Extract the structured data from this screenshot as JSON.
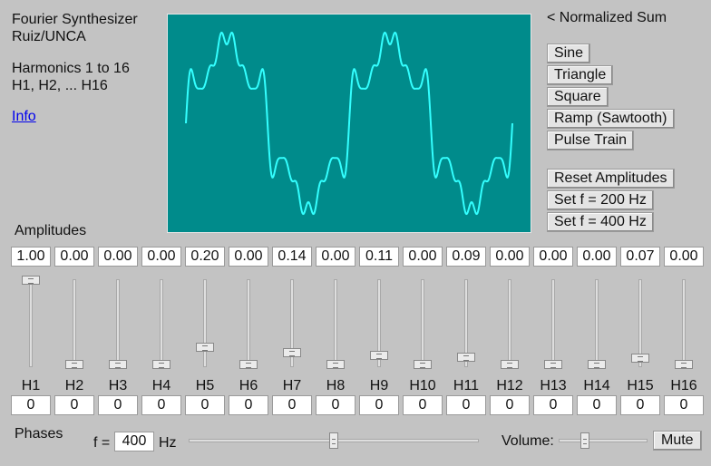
{
  "info": {
    "title": "Fourier Synthesizer",
    "author": "Ruiz/UNCA",
    "harmonics_range": "Harmonics 1 to 16",
    "harmonics_list": "H1, H2, ... H16",
    "info_link": "Info"
  },
  "scope": {
    "caption": "< Normalized Sum",
    "wave_color": "#33ffff",
    "bg_color": "#008b8b"
  },
  "presets": [
    "Sine",
    "Triangle",
    "Square",
    "Ramp (Sawtooth)",
    "Pulse Train"
  ],
  "actions": [
    "Reset Amplitudes",
    "Set f = 200 Hz",
    "Set f = 400 Hz"
  ],
  "amplitudes_label": "Amplitudes",
  "harmonics": [
    {
      "label": "H1",
      "amp": "1.00",
      "phase": "0",
      "level": 1.0
    },
    {
      "label": "H2",
      "amp": "0.00",
      "phase": "0",
      "level": 0.0
    },
    {
      "label": "H3",
      "amp": "0.00",
      "phase": "0",
      "level": 0.0
    },
    {
      "label": "H4",
      "amp": "0.00",
      "phase": "0",
      "level": 0.0
    },
    {
      "label": "H5",
      "amp": "0.20",
      "phase": "0",
      "level": 0.2
    },
    {
      "label": "H6",
      "amp": "0.00",
      "phase": "0",
      "level": 0.0
    },
    {
      "label": "H7",
      "amp": "0.14",
      "phase": "0",
      "level": 0.14
    },
    {
      "label": "H8",
      "amp": "0.00",
      "phase": "0",
      "level": 0.0
    },
    {
      "label": "H9",
      "amp": "0.11",
      "phase": "0",
      "level": 0.11
    },
    {
      "label": "H10",
      "amp": "0.00",
      "phase": "0",
      "level": 0.0
    },
    {
      "label": "H11",
      "amp": "0.09",
      "phase": "0",
      "level": 0.09
    },
    {
      "label": "H12",
      "amp": "0.00",
      "phase": "0",
      "level": 0.0
    },
    {
      "label": "H13",
      "amp": "0.00",
      "phase": "0",
      "level": 0.0
    },
    {
      "label": "H14",
      "amp": "0.00",
      "phase": "0",
      "level": 0.0
    },
    {
      "label": "H15",
      "amp": "0.07",
      "phase": "0",
      "level": 0.07
    },
    {
      "label": "H16",
      "amp": "0.00",
      "phase": "0",
      "level": 0.0
    }
  ],
  "footer": {
    "phases_label": "Phases",
    "f_label": "f =",
    "f_value": "400",
    "f_unit": "Hz",
    "f_slider_level": 0.5,
    "volume_label": "Volume:",
    "volume_level": 0.3,
    "mute_label": "Mute"
  }
}
